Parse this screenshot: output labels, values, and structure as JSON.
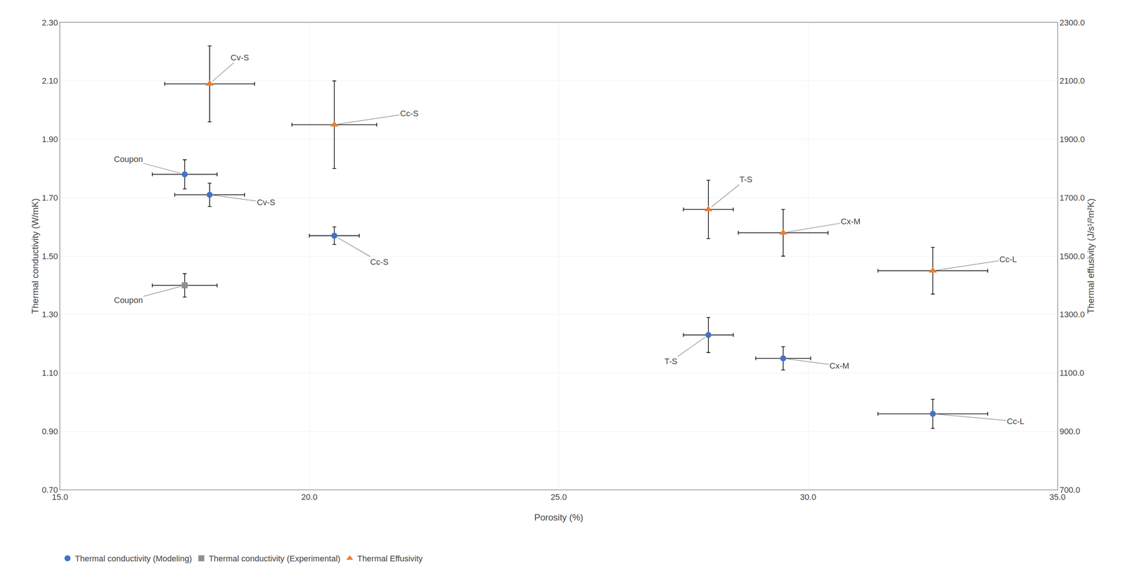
{
  "chart_data": {
    "type": "scatter",
    "xlabel": "Porosity (%)",
    "ylabel": "Thermal conductivity (W/mK)",
    "y2label": "Thermal effusivity (J/s¹/²m²K)",
    "xlim": [
      15.0,
      35.0
    ],
    "ylim": [
      0.7,
      2.3
    ],
    "y2lim": [
      700.0,
      2300.0
    ],
    "xticks": [
      {
        "value": 15.0,
        "label": "15.0"
      },
      {
        "value": 20.0,
        "label": "20.0"
      },
      {
        "value": 25.0,
        "label": "25.0"
      },
      {
        "value": 30.0,
        "label": "30.0"
      },
      {
        "value": 35.0,
        "label": "35.0"
      }
    ],
    "yticks": [
      {
        "value": 0.7,
        "label": "0.70"
      },
      {
        "value": 0.9,
        "label": "0.90"
      },
      {
        "value": 1.1,
        "label": "1.10"
      },
      {
        "value": 1.3,
        "label": "1.30"
      },
      {
        "value": 1.5,
        "label": "1.50"
      },
      {
        "value": 1.7,
        "label": "1.70"
      },
      {
        "value": 1.9,
        "label": "1.90"
      },
      {
        "value": 2.1,
        "label": "2.10"
      },
      {
        "value": 2.3,
        "label": "2.30"
      }
    ],
    "y2ticks": [
      {
        "value": 700.0,
        "label": "700.0"
      },
      {
        "value": 900.0,
        "label": "900.0"
      },
      {
        "value": 1100.0,
        "label": "1100.0"
      },
      {
        "value": 1300.0,
        "label": "1300.0"
      },
      {
        "value": 1500.0,
        "label": "1500.0"
      },
      {
        "value": 1700.0,
        "label": "1700.0"
      },
      {
        "value": 1900.0,
        "label": "1900.0"
      },
      {
        "value": 2100.0,
        "label": "2100.0"
      },
      {
        "value": 2300.0,
        "label": "2300.0"
      }
    ],
    "grid": true,
    "legend": "bottom left",
    "series": [
      {
        "name": "Thermal conductivity (Modeling)",
        "color": "#4472C4",
        "marker": "circle",
        "x": [
          17.5,
          18.0,
          20.5,
          28.0,
          29.5,
          32.5
        ],
        "values": [
          1.78,
          1.71,
          1.57,
          1.23,
          1.15,
          0.96
        ],
        "xerr": [
          0.65,
          0.7,
          0.5,
          0.5,
          0.55,
          1.1
        ],
        "yerr": [
          0.05,
          0.04,
          0.03,
          0.06,
          0.04,
          0.05
        ],
        "labels": [
          "Coupon",
          "Cv-S",
          "Cc-S",
          "T-S",
          "Cx-M",
          "Cc-L"
        ]
      },
      {
        "name": "Thermal conductivity (Experimental)",
        "color": "#8F8F8F",
        "marker": "square",
        "x": [
          17.5
        ],
        "values": [
          1.4
        ],
        "xerr": [
          0.65
        ],
        "yerr": [
          0.04
        ],
        "labels": [
          "Coupon"
        ]
      },
      {
        "name": "Thermal Effusivity",
        "color": "#ED7D31",
        "marker": "triangle-up",
        "x": [
          18.0,
          20.5,
          28.0,
          29.5,
          32.5
        ],
        "values": [
          2.09,
          1.95,
          1.66,
          1.58,
          1.45
        ],
        "xerr": [
          0.9,
          0.85,
          0.5,
          0.9,
          1.1
        ],
        "yerr": [
          0.13,
          0.15,
          0.1,
          0.08,
          0.08
        ],
        "labels": [
          "Cv-S",
          "Cc-S",
          "T-S",
          "Cx-M",
          "Cc-L"
        ]
      }
    ]
  }
}
